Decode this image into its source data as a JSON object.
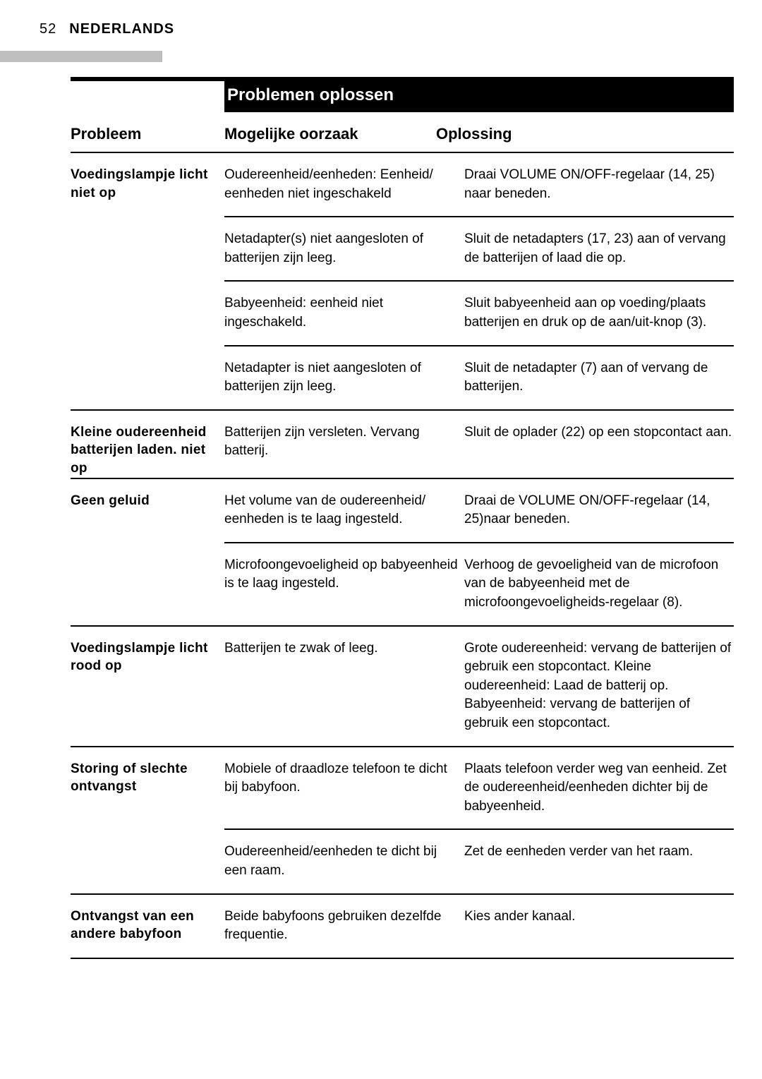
{
  "page_number": "52",
  "language": "NEDERLANDS",
  "title": "Problemen oplossen",
  "headers": {
    "problem": "Probleem",
    "cause": "Mogelijke oorzaak",
    "solution": "Oplossing"
  },
  "sections": [
    {
      "problem": "Voedingslampje licht niet op",
      "rows": [
        {
          "cause": "Oudereenheid/eenheden: Eenheid/ eenheden niet ingeschakeld",
          "solution": "Draai VOLUME ON/OFF-regelaar (14, 25) naar beneden."
        },
        {
          "cause": "Netadapter(s) niet aangesloten of batterijen zijn leeg.",
          "solution": "Sluit de netadapters (17, 23) aan of vervang de batterijen of laad die op."
        },
        {
          "cause": "Babyeenheid: eenheid niet ingeschakeld.",
          "solution": "Sluit babyeenheid aan op voeding/plaats batterijen en druk op de aan/uit-knop (3)."
        },
        {
          "cause": "Netadapter is niet aangesloten of batterijen zijn leeg.",
          "solution": "Sluit de netadapter (7) aan of vervang de batterijen."
        }
      ]
    },
    {
      "problem": "Kleine oudereenheid batterijen laden. niet op",
      "rows": [
        {
          "cause": "Batterijen zijn versleten. Vervang batterij.",
          "solution": "Sluit de oplader (22) op een stopcontact aan."
        }
      ]
    },
    {
      "problem": "Geen geluid",
      "rows": [
        {
          "cause": "Het volume van de oudereenheid/ eenheden is te laag ingesteld.",
          "solution": "Draai de VOLUME ON/OFF-regelaar (14, 25)naar beneden."
        },
        {
          "cause": "Microfoongevoeligheid op babyeenheid is te laag ingesteld.",
          "solution": "Verhoog de gevoeligheid van de microfoon van de babyeenheid met de microfoongevoeligheids-regelaar (8)."
        }
      ]
    },
    {
      "problem": "Voedingslampje licht rood op",
      "rows": [
        {
          "cause": "Batterijen te zwak of leeg.",
          "solution": "Grote oudereenheid: vervang de batterijen of gebruik een stopcontact. Kleine oudereenheid: Laad de batterij op. Babyeenheid: vervang de batterijen of gebruik een stopcontact."
        }
      ]
    },
    {
      "problem": "Storing of slechte ontvangst",
      "rows": [
        {
          "cause": "Mobiele of draadloze telefoon te dicht bij babyfoon.",
          "solution": "Plaats telefoon verder weg van eenheid. Zet de oudereenheid/eenheden dichter bij de babyeenheid."
        },
        {
          "cause": "Oudereenheid/eenheden te dicht bij een raam.",
          "solution": "Zet de eenheden verder van het raam."
        }
      ]
    },
    {
      "problem": "Ontvangst van een andere babyfoon",
      "rows": [
        {
          "cause": "Beide babyfoons gebruiken dezelfde frequentie.",
          "solution": "Kies ander kanaal."
        }
      ]
    }
  ]
}
